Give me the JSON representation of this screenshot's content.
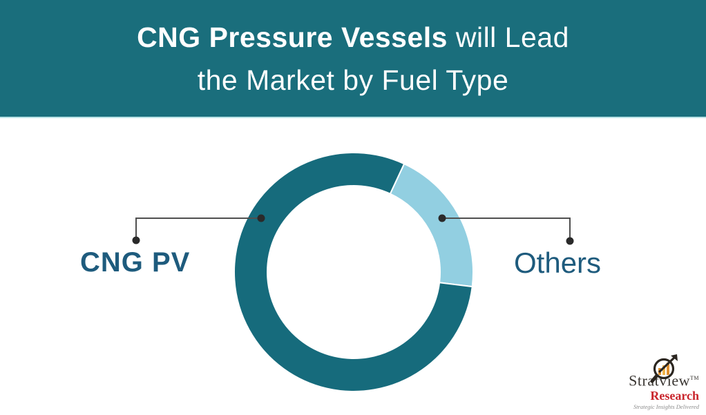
{
  "header": {
    "title_bold": "CNG Pressure Vessels",
    "title_regular": " will Lead",
    "title_line2": "the Market by Fuel Type",
    "bg_color": "#1a6e7c",
    "text_color": "#ffffff"
  },
  "chart_data": {
    "type": "pie",
    "donut": true,
    "title": "CNG Pressure Vessels will Lead the Market by Fuel Type",
    "slices": [
      {
        "label": "Others",
        "value": 20,
        "color": "#92cfe1"
      },
      {
        "label": "CNG PV",
        "value": 80,
        "color": "#166b7c"
      }
    ],
    "values_are_percent": true,
    "rotation_deg": 25,
    "inner_radius_ratio": 0.72,
    "data_labels": "none",
    "legend_position": "callout-labels",
    "callout_color": "#1e5b7d",
    "leader_line_color": "#4f4f4f"
  },
  "labels": {
    "left": "CNG PV",
    "right": "Others"
  },
  "logo": {
    "brand_top": "Stratview",
    "brand_tm": "TM",
    "brand_bottom": "Research",
    "tagline": "Strategic Insights Delivered",
    "research_color": "#c9252c",
    "icon": "magnifier-bar-chart-icon"
  }
}
